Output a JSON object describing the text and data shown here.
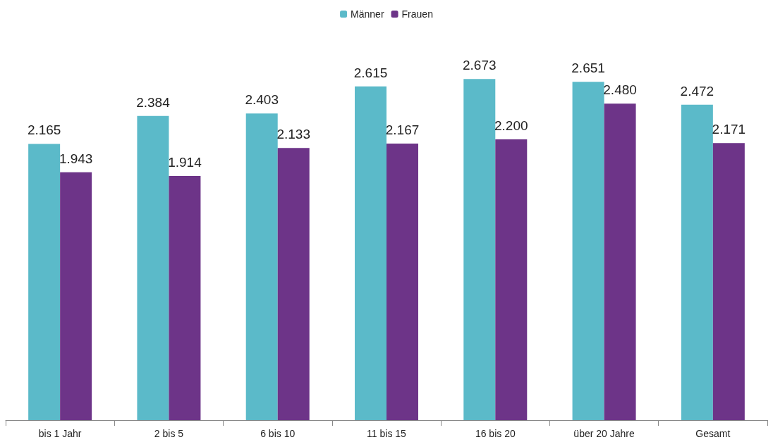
{
  "chart_data": {
    "type": "bar",
    "categories": [
      "bis 1 Jahr",
      "2 bis 5",
      "6 bis 10",
      "11 bis 15",
      "16 bis 20",
      "über 20 Jahre",
      "Gesamt"
    ],
    "series": [
      {
        "name": "Männer",
        "color": "#5bbac9",
        "values": [
          2165,
          2384,
          2403,
          2615,
          2673,
          2651,
          2472
        ],
        "value_labels": [
          "2.165",
          "2.384",
          "2.403",
          "2.615",
          "2.673",
          "2.651",
          "2.472"
        ]
      },
      {
        "name": "Frauen",
        "color": "#6d3488",
        "values": [
          1943,
          1914,
          2133,
          2167,
          2200,
          2480,
          2171
        ],
        "value_labels": [
          "1.943",
          "1.914",
          "2.133",
          "2.167",
          "2.200",
          "2.480",
          "2.171"
        ]
      }
    ],
    "legend": "top",
    "grid": false
  }
}
